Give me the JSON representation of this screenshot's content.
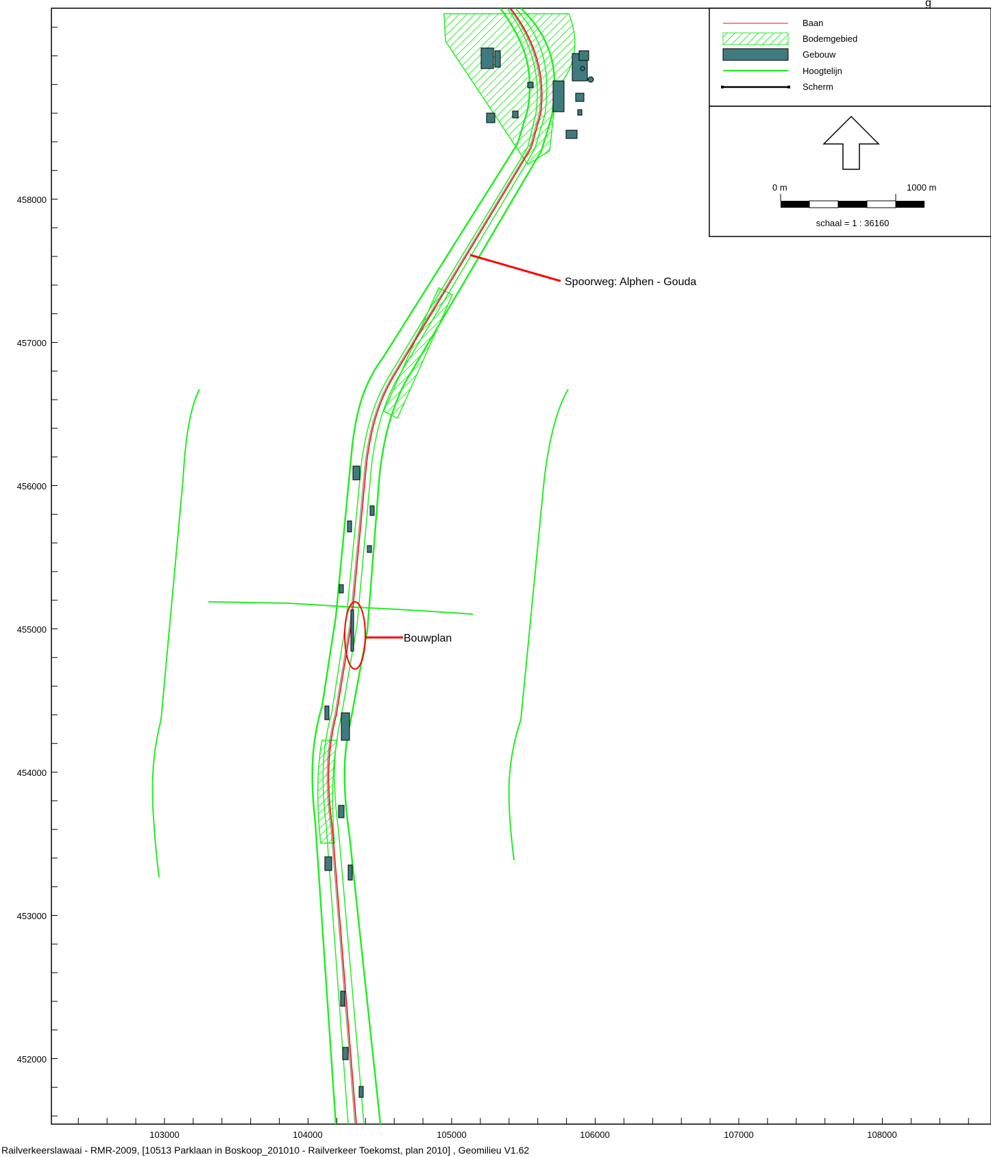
{
  "header": {
    "corner_text": "g"
  },
  "axes": {
    "y_ticks": [
      "458000",
      "457000",
      "456000",
      "455000",
      "454000",
      "453000",
      "452000"
    ],
    "x_ticks": [
      "103000",
      "104000",
      "105000",
      "106000",
      "107000",
      "108000"
    ]
  },
  "legend": {
    "items": [
      {
        "label": "Baan",
        "symbol": "red-line",
        "color": "#ff0000"
      },
      {
        "label": "Bodemgebied",
        "symbol": "hatched-green",
        "color": "#33ee33"
      },
      {
        "label": "Gebouw",
        "symbol": "teal-box",
        "color": "#3f7b7e"
      },
      {
        "label": "Hoogtelijn",
        "symbol": "green-line",
        "color": "#22ee22"
      },
      {
        "label": "Scherm",
        "symbol": "black-line",
        "color": "#000000"
      }
    ],
    "north_arrow": "north-arrow-icon",
    "scale_start": "0 m",
    "scale_end": "1000 m",
    "scale_text": "schaal = 1 : 36160"
  },
  "annotations": {
    "railway": "Spoorweg: Alphen - Gouda",
    "building_plan": "Bouwplan"
  },
  "footer": "Railverkeerslawaai - RMR-2009, [10513 Parklaan in Boskoop_201010 - Railverkeer Toekomst, plan 2010] , Geomilieu V1.62",
  "colors": {
    "contour": "#22ee22",
    "track": "#ff0000",
    "building": "#3f7b7e",
    "frame": "#000000"
  }
}
